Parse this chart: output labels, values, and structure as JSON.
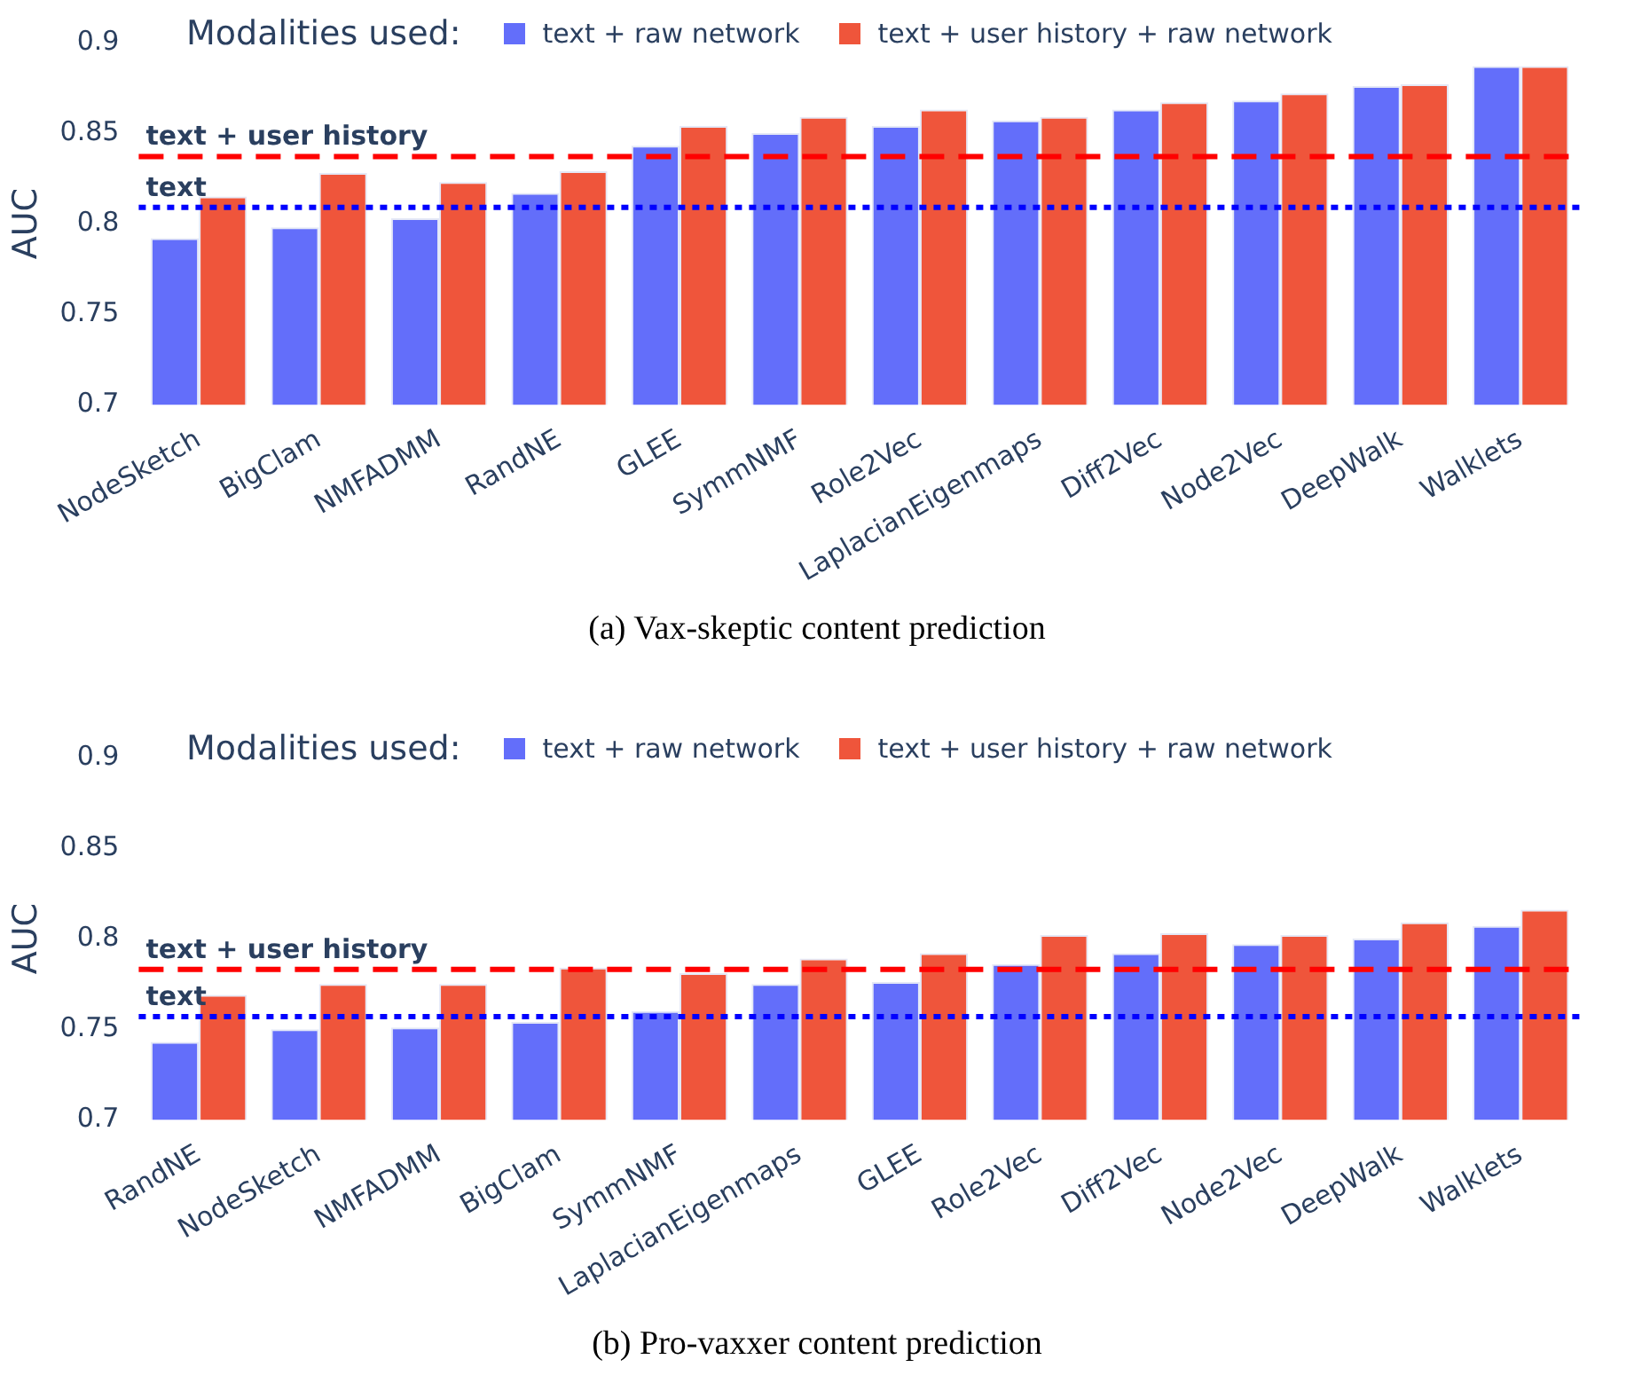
{
  "chart_data": [
    {
      "type": "bar",
      "ylabel": "AUC",
      "legend_title": "Modalities used:",
      "legend": "top",
      "grid": false,
      "categories": [
        "NodeSketch",
        "BigClam",
        "NMFADMM",
        "RandNE",
        "GLEE",
        "SymmNMF",
        "Role2Vec",
        "LaplacianEigenmaps",
        "Diff2Vec",
        "Node2Vec",
        "DeepWalk",
        "Walklets"
      ],
      "series": [
        {
          "name": "text + raw network",
          "color": "#636efa",
          "values": [
            0.792,
            0.798,
            0.803,
            0.817,
            0.843,
            0.85,
            0.854,
            0.857,
            0.863,
            0.868,
            0.876,
            0.887
          ]
        },
        {
          "name": "text + user history + raw network",
          "color": "#ef553b",
          "values": [
            0.815,
            0.828,
            0.823,
            0.829,
            0.854,
            0.859,
            0.863,
            0.859,
            0.867,
            0.872,
            0.877,
            0.887
          ]
        }
      ],
      "ylim": [
        0.7,
        0.9
      ],
      "yticks": [
        0.7,
        0.75,
        0.8,
        0.85,
        0.9
      ],
      "ref_lines": [
        {
          "axis": "y",
          "value": 0.837,
          "label": "text + user history",
          "color": "#ff0000",
          "line_style": "dashed"
        },
        {
          "axis": "y",
          "value": 0.809,
          "label": "text",
          "color": "#0000ff",
          "line_style": "dotted"
        }
      ],
      "annotations": [
        "(a) Vax-skeptic content prediction"
      ]
    },
    {
      "type": "bar",
      "ylabel": "AUC",
      "legend_title": "Modalities used:",
      "legend": "top",
      "grid": false,
      "categories": [
        "RandNE",
        "NodeSketch",
        "NMFADMM",
        "BigClam",
        "SymmNMF",
        "LaplacianEigenmaps",
        "GLEE",
        "Role2Vec",
        "Diff2Vec",
        "Node2Vec",
        "DeepWalk",
        "Walklets"
      ],
      "series": [
        {
          "name": "text + raw network",
          "color": "#636efa",
          "values": [
            0.743,
            0.75,
            0.751,
            0.754,
            0.76,
            0.775,
            0.776,
            0.786,
            0.792,
            0.797,
            0.8,
            0.807
          ]
        },
        {
          "name": "text + user history + raw network",
          "color": "#ef553b",
          "values": [
            0.769,
            0.775,
            0.775,
            0.784,
            0.781,
            0.789,
            0.792,
            0.802,
            0.803,
            0.802,
            0.809,
            0.816
          ]
        }
      ],
      "ylim": [
        0.7,
        0.9
      ],
      "yticks": [
        0.7,
        0.75,
        0.8,
        0.85,
        0.9
      ],
      "ref_lines": [
        {
          "axis": "y",
          "value": 0.783,
          "label": "text + user history",
          "color": "#ff0000",
          "line_style": "dashed"
        },
        {
          "axis": "y",
          "value": 0.757,
          "label": "text",
          "color": "#0000ff",
          "line_style": "dotted"
        }
      ],
      "annotations": [
        "(b) Pro-vaxxer content prediction"
      ]
    }
  ]
}
